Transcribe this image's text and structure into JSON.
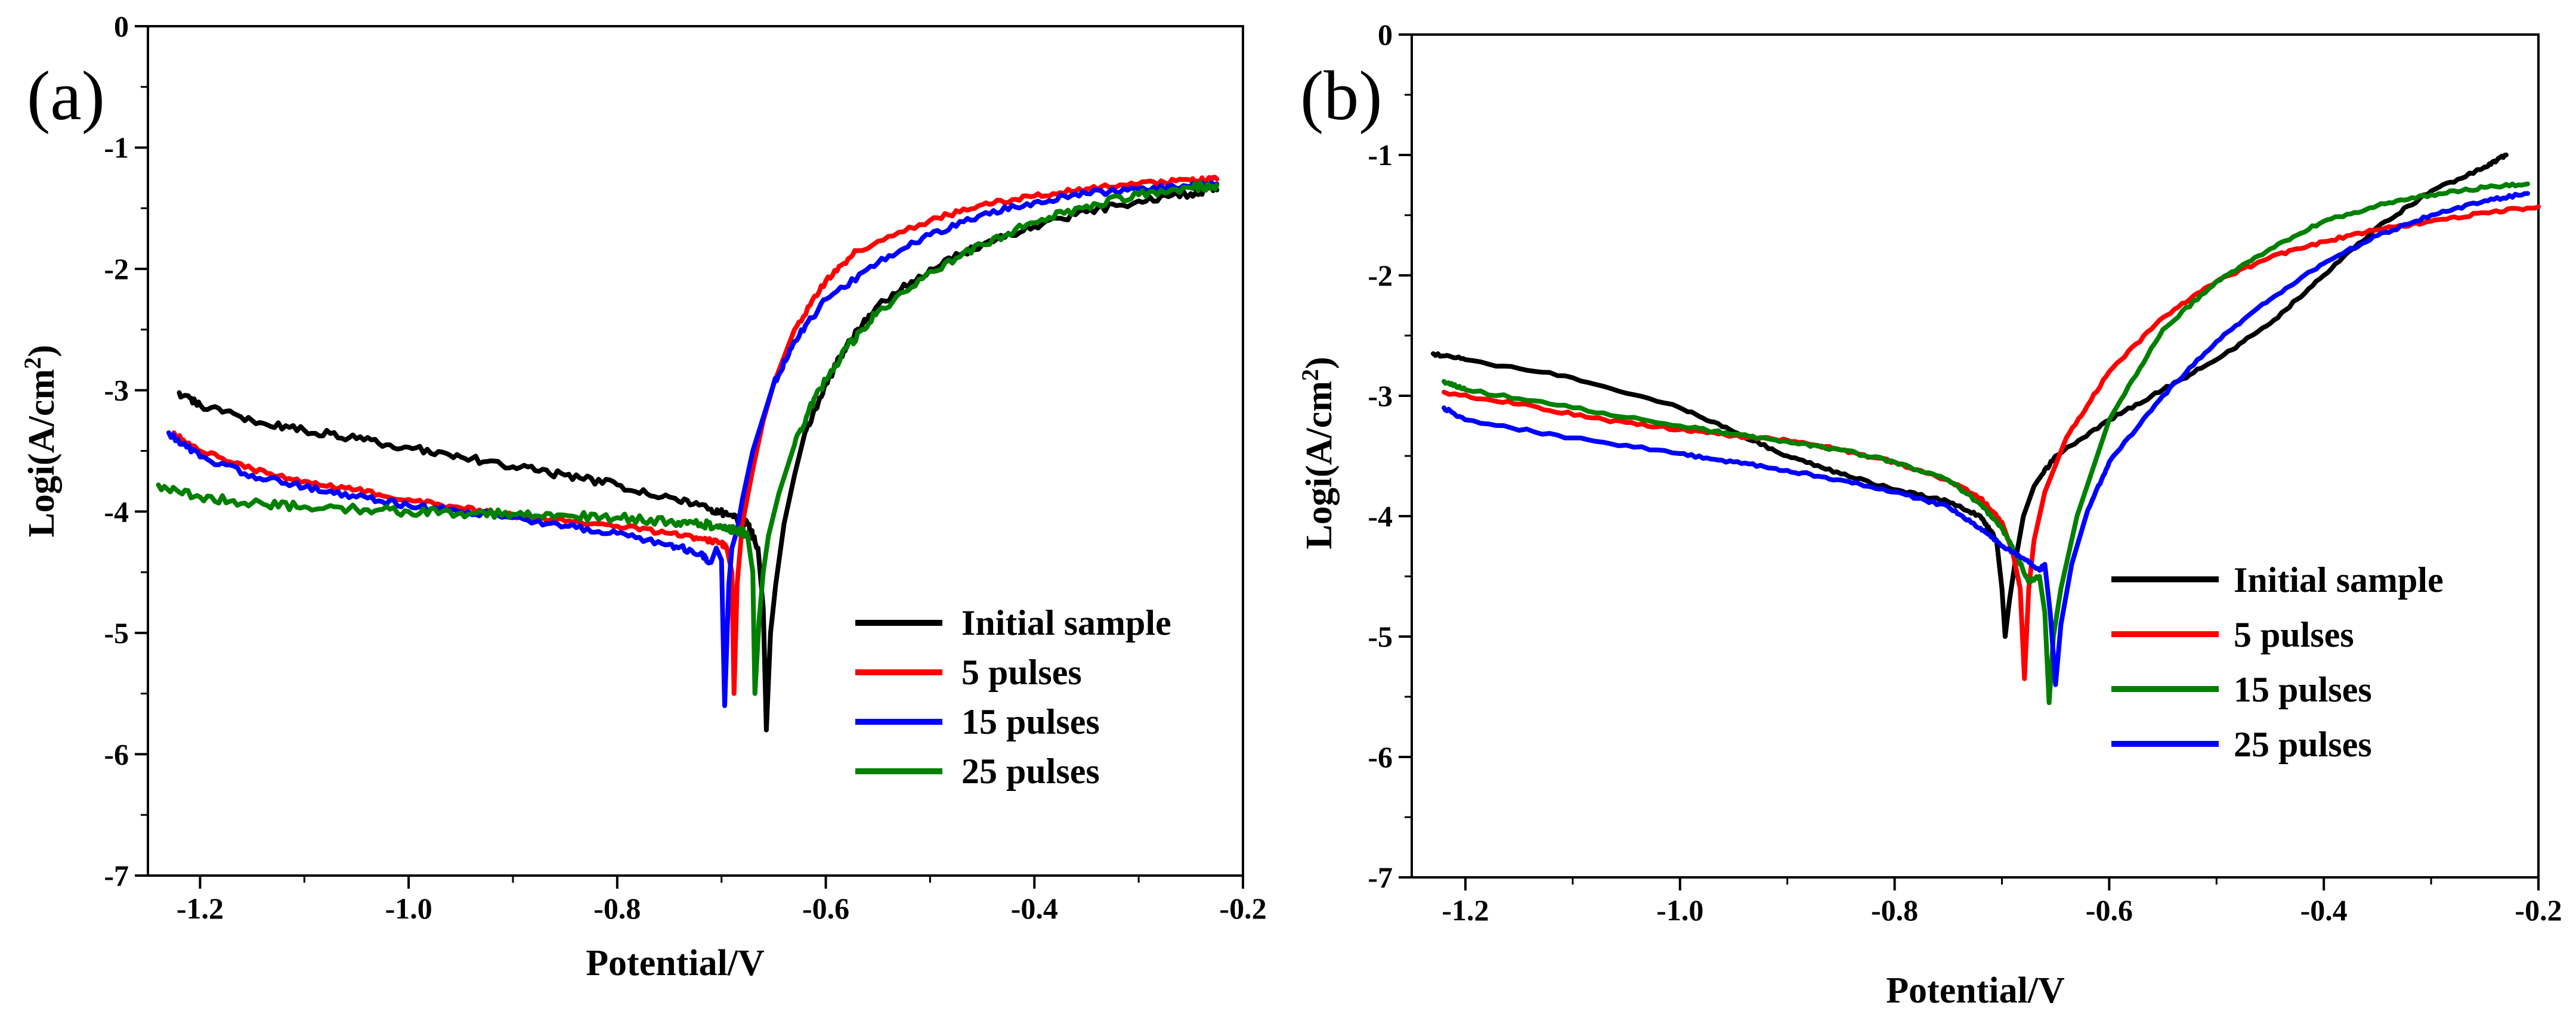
{
  "chart_data": [
    {
      "type": "line",
      "panel_label": "(a)",
      "xlabel": "Potential/V",
      "ylabel_main": "Logi(A/cm",
      "ylabel_sup": "2",
      "ylabel_close": ")",
      "xlim": [
        -1.25,
        -0.2
      ],
      "ylim": [
        -7,
        0
      ],
      "xticks": [
        -1.2,
        -1.0,
        -0.8,
        -0.6,
        -0.4,
        -0.2
      ],
      "xtick_labels": [
        "-1.2",
        "-1.0",
        "-0.8",
        "-0.6",
        "-0.4",
        "-0.2"
      ],
      "yticks": [
        0,
        -1,
        -2,
        -3,
        -4,
        -5,
        -6,
        -7
      ],
      "ytick_labels": [
        "0",
        "-1",
        "-2",
        "-3",
        "-4",
        "-5",
        "-6",
        "-7"
      ],
      "legend_position": "lower-right",
      "series": [
        {
          "name": "Initial sample",
          "color": "#000000",
          "noise": 0.03,
          "points": [
            [
              -1.22,
              -3.02
            ],
            [
              -1.2,
              -3.12
            ],
            [
              -1.15,
              -3.25
            ],
            [
              -1.1,
              -3.33
            ],
            [
              -1.05,
              -3.4
            ],
            [
              -1.0,
              -3.47
            ],
            [
              -0.95,
              -3.55
            ],
            [
              -0.9,
              -3.63
            ],
            [
              -0.85,
              -3.7
            ],
            [
              -0.8,
              -3.78
            ],
            [
              -0.75,
              -3.88
            ],
            [
              -0.71,
              -3.98
            ],
            [
              -0.69,
              -4.03
            ],
            [
              -0.675,
              -4.1
            ],
            [
              -0.665,
              -4.3
            ],
            [
              -0.66,
              -4.8
            ],
            [
              -0.657,
              -5.8
            ],
            [
              -0.653,
              -5.0
            ],
            [
              -0.648,
              -4.6
            ],
            [
              -0.64,
              -4.1
            ],
            [
              -0.63,
              -3.7
            ],
            [
              -0.62,
              -3.35
            ],
            [
              -0.6,
              -2.95
            ],
            [
              -0.58,
              -2.63
            ],
            [
              -0.55,
              -2.3
            ],
            [
              -0.5,
              -2.0
            ],
            [
              -0.45,
              -1.8
            ],
            [
              -0.4,
              -1.65
            ],
            [
              -0.35,
              -1.53
            ],
            [
              -0.3,
              -1.44
            ],
            [
              -0.25,
              -1.38
            ],
            [
              -0.225,
              -1.35
            ]
          ]
        },
        {
          "name": "5 pulses",
          "color": "#ff0000",
          "noise": 0.02,
          "points": [
            [
              -1.225,
              -3.35
            ],
            [
              -1.2,
              -3.5
            ],
            [
              -1.15,
              -3.65
            ],
            [
              -1.1,
              -3.75
            ],
            [
              -1.05,
              -3.82
            ],
            [
              -1.0,
              -3.9
            ],
            [
              -0.95,
              -3.97
            ],
            [
              -0.9,
              -4.03
            ],
            [
              -0.85,
              -4.08
            ],
            [
              -0.8,
              -4.12
            ],
            [
              -0.75,
              -4.18
            ],
            [
              -0.72,
              -4.22
            ],
            [
              -0.7,
              -4.26
            ],
            [
              -0.695,
              -4.3
            ],
            [
              -0.69,
              -4.5
            ],
            [
              -0.688,
              -5.5
            ],
            [
              -0.685,
              -4.6
            ],
            [
              -0.68,
              -4.1
            ],
            [
              -0.67,
              -3.65
            ],
            [
              -0.66,
              -3.25
            ],
            [
              -0.65,
              -2.95
            ],
            [
              -0.63,
              -2.5
            ],
            [
              -0.6,
              -2.1
            ],
            [
              -0.57,
              -1.85
            ],
            [
              -0.5,
              -1.6
            ],
            [
              -0.45,
              -1.47
            ],
            [
              -0.4,
              -1.4
            ],
            [
              -0.35,
              -1.34
            ],
            [
              -0.3,
              -1.3
            ],
            [
              -0.25,
              -1.27
            ],
            [
              -0.225,
              -1.26
            ]
          ]
        },
        {
          "name": "15 pulses",
          "color": "#0000ff",
          "noise": 0.025,
          "points": [
            [
              -1.23,
              -3.35
            ],
            [
              -1.2,
              -3.55
            ],
            [
              -1.15,
              -3.7
            ],
            [
              -1.1,
              -3.8
            ],
            [
              -1.05,
              -3.88
            ],
            [
              -1.0,
              -3.95
            ],
            [
              -0.95,
              -4.0
            ],
            [
              -0.9,
              -4.05
            ],
            [
              -0.85,
              -4.12
            ],
            [
              -0.8,
              -4.18
            ],
            [
              -0.75,
              -4.27
            ],
            [
              -0.72,
              -4.35
            ],
            [
              -0.71,
              -4.42
            ],
            [
              -0.705,
              -4.3
            ],
            [
              -0.7,
              -4.4
            ],
            [
              -0.697,
              -5.6
            ],
            [
              -0.693,
              -4.6
            ],
            [
              -0.69,
              -4.3
            ],
            [
              -0.685,
              -4.15
            ],
            [
              -0.68,
              -3.9
            ],
            [
              -0.67,
              -3.5
            ],
            [
              -0.65,
              -2.95
            ],
            [
              -0.63,
              -2.6
            ],
            [
              -0.6,
              -2.25
            ],
            [
              -0.55,
              -1.95
            ],
            [
              -0.5,
              -1.72
            ],
            [
              -0.45,
              -1.55
            ],
            [
              -0.4,
              -1.45
            ],
            [
              -0.35,
              -1.38
            ],
            [
              -0.3,
              -1.34
            ],
            [
              -0.25,
              -1.32
            ],
            [
              -0.225,
              -1.3
            ]
          ]
        },
        {
          "name": "25 pulses",
          "color": "#008000",
          "noise": 0.035,
          "points": [
            [
              -1.24,
              -3.78
            ],
            [
              -1.2,
              -3.88
            ],
            [
              -1.15,
              -3.93
            ],
            [
              -1.1,
              -3.96
            ],
            [
              -1.05,
              -3.98
            ],
            [
              -1.0,
              -4.0
            ],
            [
              -0.95,
              -4.01
            ],
            [
              -0.9,
              -4.02
            ],
            [
              -0.85,
              -4.03
            ],
            [
              -0.8,
              -4.05
            ],
            [
              -0.75,
              -4.08
            ],
            [
              -0.72,
              -4.1
            ],
            [
              -0.7,
              -4.12
            ],
            [
              -0.685,
              -4.15
            ],
            [
              -0.675,
              -4.2
            ],
            [
              -0.67,
              -4.5
            ],
            [
              -0.668,
              -5.5
            ],
            [
              -0.664,
              -4.9
            ],
            [
              -0.66,
              -4.5
            ],
            [
              -0.655,
              -4.2
            ],
            [
              -0.645,
              -3.85
            ],
            [
              -0.63,
              -3.45
            ],
            [
              -0.61,
              -3.05
            ],
            [
              -0.58,
              -2.65
            ],
            [
              -0.55,
              -2.35
            ],
            [
              -0.5,
              -2.02
            ],
            [
              -0.45,
              -1.8
            ],
            [
              -0.4,
              -1.62
            ],
            [
              -0.35,
              -1.48
            ],
            [
              -0.3,
              -1.39
            ],
            [
              -0.25,
              -1.33
            ],
            [
              -0.225,
              -1.31
            ]
          ]
        }
      ]
    },
    {
      "type": "line",
      "panel_label": "(b)",
      "xlabel": "Potential/V",
      "ylabel_main": "Logi(A/cm",
      "ylabel_sup": "2",
      "ylabel_close": ")",
      "xlim": [
        -1.25,
        -0.2
      ],
      "ylim": [
        -7,
        0
      ],
      "xticks": [
        -1.2,
        -1.0,
        -0.8,
        -0.6,
        -0.4,
        -0.2
      ],
      "xtick_labels": [
        "-1.2",
        "-1.0",
        "-0.8",
        "-0.6",
        "-0.4",
        "-0.2"
      ],
      "yticks": [
        0,
        -1,
        -2,
        -3,
        -4,
        -5,
        -6,
        -7
      ],
      "ytick_labels": [
        "0",
        "-1",
        "-2",
        "-3",
        "-4",
        "-5",
        "-6",
        "-7"
      ],
      "legend_position": "lower-right",
      "series": [
        {
          "name": "Initial sample",
          "color": "#000000",
          "noise": 0.012,
          "points": [
            [
              -1.23,
              -2.65
            ],
            [
              -1.2,
              -2.7
            ],
            [
              -1.1,
              -2.85
            ],
            [
              -1.0,
              -3.1
            ],
            [
              -0.95,
              -3.3
            ],
            [
              -0.9,
              -3.5
            ],
            [
              -0.85,
              -3.65
            ],
            [
              -0.8,
              -3.78
            ],
            [
              -0.75,
              -3.88
            ],
            [
              -0.72,
              -4.0
            ],
            [
              -0.705,
              -4.2
            ],
            [
              -0.7,
              -4.6
            ],
            [
              -0.697,
              -5.0
            ],
            [
              -0.693,
              -4.7
            ],
            [
              -0.688,
              -4.4
            ],
            [
              -0.68,
              -4.0
            ],
            [
              -0.67,
              -3.75
            ],
            [
              -0.65,
              -3.5
            ],
            [
              -0.6,
              -3.2
            ],
            [
              -0.55,
              -2.95
            ],
            [
              -0.5,
              -2.7
            ],
            [
              -0.45,
              -2.4
            ],
            [
              -0.4,
              -2.0
            ],
            [
              -0.35,
              -1.6
            ],
            [
              -0.3,
              -1.3
            ],
            [
              -0.25,
              -1.1
            ],
            [
              -0.23,
              -1.0
            ]
          ]
        },
        {
          "name": "5 pulses",
          "color": "#ff0000",
          "noise": 0.012,
          "points": [
            [
              -1.22,
              -2.97
            ],
            [
              -1.15,
              -3.07
            ],
            [
              -1.07,
              -3.2
            ],
            [
              -1.0,
              -3.28
            ],
            [
              -0.95,
              -3.33
            ],
            [
              -0.9,
              -3.37
            ],
            [
              -0.85,
              -3.45
            ],
            [
              -0.8,
              -3.55
            ],
            [
              -0.75,
              -3.7
            ],
            [
              -0.72,
              -3.85
            ],
            [
              -0.7,
              -4.05
            ],
            [
              -0.69,
              -4.3
            ],
            [
              -0.683,
              -4.6
            ],
            [
              -0.679,
              -5.35
            ],
            [
              -0.675,
              -4.6
            ],
            [
              -0.67,
              -4.2
            ],
            [
              -0.66,
              -3.8
            ],
            [
              -0.64,
              -3.35
            ],
            [
              -0.6,
              -2.8
            ],
            [
              -0.55,
              -2.35
            ],
            [
              -0.5,
              -2.05
            ],
            [
              -0.45,
              -1.85
            ],
            [
              -0.4,
              -1.72
            ],
            [
              -0.35,
              -1.62
            ],
            [
              -0.3,
              -1.55
            ],
            [
              -0.25,
              -1.48
            ],
            [
              -0.2,
              -1.43
            ]
          ]
        },
        {
          "name": "15 pulses",
          "color": "#008000",
          "noise": 0.012,
          "points": [
            [
              -1.22,
              -2.88
            ],
            [
              -1.2,
              -2.95
            ],
            [
              -1.1,
              -3.1
            ],
            [
              -1.0,
              -3.25
            ],
            [
              -0.95,
              -3.32
            ],
            [
              -0.9,
              -3.38
            ],
            [
              -0.85,
              -3.45
            ],
            [
              -0.8,
              -3.55
            ],
            [
              -0.75,
              -3.7
            ],
            [
              -0.72,
              -3.9
            ],
            [
              -0.7,
              -4.1
            ],
            [
              -0.685,
              -4.35
            ],
            [
              -0.675,
              -4.55
            ],
            [
              -0.665,
              -4.5
            ],
            [
              -0.66,
              -4.8
            ],
            [
              -0.656,
              -5.55
            ],
            [
              -0.652,
              -5.0
            ],
            [
              -0.645,
              -4.6
            ],
            [
              -0.63,
              -4.0
            ],
            [
              -0.6,
              -3.2
            ],
            [
              -0.55,
              -2.45
            ],
            [
              -0.5,
              -2.05
            ],
            [
              -0.45,
              -1.78
            ],
            [
              -0.4,
              -1.55
            ],
            [
              -0.35,
              -1.42
            ],
            [
              -0.3,
              -1.33
            ],
            [
              -0.25,
              -1.27
            ],
            [
              -0.21,
              -1.24
            ]
          ]
        },
        {
          "name": "25 pulses",
          "color": "#0000ff",
          "noise": 0.012,
          "points": [
            [
              -1.22,
              -3.1
            ],
            [
              -1.2,
              -3.2
            ],
            [
              -1.1,
              -3.35
            ],
            [
              -1.0,
              -3.48
            ],
            [
              -0.95,
              -3.55
            ],
            [
              -0.9,
              -3.62
            ],
            [
              -0.85,
              -3.7
            ],
            [
              -0.8,
              -3.8
            ],
            [
              -0.75,
              -3.92
            ],
            [
              -0.72,
              -4.1
            ],
            [
              -0.7,
              -4.25
            ],
            [
              -0.68,
              -4.35
            ],
            [
              -0.665,
              -4.45
            ],
            [
              -0.66,
              -4.4
            ],
            [
              -0.655,
              -4.8
            ],
            [
              -0.65,
              -5.4
            ],
            [
              -0.645,
              -4.9
            ],
            [
              -0.635,
              -4.4
            ],
            [
              -0.62,
              -3.95
            ],
            [
              -0.6,
              -3.55
            ],
            [
              -0.55,
              -3.0
            ],
            [
              -0.5,
              -2.55
            ],
            [
              -0.45,
              -2.2
            ],
            [
              -0.4,
              -1.9
            ],
            [
              -0.35,
              -1.67
            ],
            [
              -0.3,
              -1.5
            ],
            [
              -0.25,
              -1.38
            ],
            [
              -0.21,
              -1.32
            ]
          ]
        }
      ]
    }
  ]
}
